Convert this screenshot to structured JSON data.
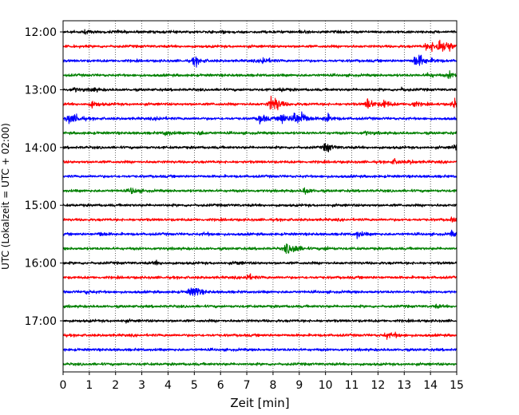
{
  "chart_data": {
    "type": "line",
    "xlabel": "Zeit  [min]",
    "ylabel": "UTC (Lokalzeit = UTC + 02:00)",
    "xlim": [
      0,
      15
    ],
    "x_ticks": [
      "0",
      "1",
      "2",
      "3",
      "4",
      "5",
      "6",
      "7",
      "8",
      "9",
      "10",
      "11",
      "12",
      "13",
      "14",
      "15"
    ],
    "y_ticks": [
      "12:00",
      "13:00",
      "14:00",
      "15:00",
      "16:00",
      "17:00"
    ],
    "grid": "vertical dotted",
    "trace_colors": [
      "#000000",
      "#ff0000",
      "#0000ff",
      "#008000"
    ],
    "trace_interval_min": 15,
    "traces": [
      {
        "start": "12:00",
        "events": [
          [
            0.8,
            0.3
          ],
          [
            2.0,
            0.2
          ],
          [
            6.0,
            0.2
          ],
          [
            9.0,
            0.2
          ]
        ]
      },
      {
        "start": "12:15",
        "events": [
          [
            14.0,
            0.9
          ],
          [
            14.3,
            1.8
          ],
          [
            14.6,
            1.5
          ],
          [
            13.8,
            0.5
          ]
        ]
      },
      {
        "start": "12:30",
        "events": [
          [
            5.0,
            1.2
          ],
          [
            7.6,
            1.0
          ],
          [
            13.4,
            1.3
          ],
          [
            13.6,
            1.0
          ],
          [
            14.1,
            0.3
          ]
        ]
      },
      {
        "start": "12:45",
        "events": [
          [
            13.9,
            0.5
          ],
          [
            14.7,
            0.8
          ]
        ]
      },
      {
        "start": "13:00",
        "events": [
          [
            0.4,
            0.5
          ],
          [
            1.1,
            0.5
          ],
          [
            8.3,
            0.4
          ],
          [
            12.9,
            0.3
          ]
        ]
      },
      {
        "start": "13:15",
        "events": [
          [
            1.1,
            0.8
          ],
          [
            7.9,
            1.7
          ],
          [
            8.1,
            1.2
          ],
          [
            11.6,
            1.5
          ],
          [
            12.2,
            1.1
          ],
          [
            13.3,
            0.8
          ],
          [
            14.9,
            1.3
          ]
        ]
      },
      {
        "start": "13:30",
        "events": [
          [
            0.2,
            1.3
          ],
          [
            0.5,
            0.7
          ],
          [
            7.5,
            1.3
          ],
          [
            8.3,
            1.6
          ],
          [
            8.8,
            1.9
          ],
          [
            9.1,
            1.4
          ],
          [
            10.0,
            1.2
          ],
          [
            3.6,
            0.4
          ]
        ]
      },
      {
        "start": "13:45",
        "events": [
          [
            3.9,
            0.6
          ],
          [
            5.2,
            0.4
          ],
          [
            11.5,
            0.4
          ]
        ]
      },
      {
        "start": "14:00",
        "events": [
          [
            10.0,
            1.4
          ],
          [
            14.9,
            0.8
          ]
        ]
      },
      {
        "start": "14:15",
        "events": [
          [
            12.6,
            0.6
          ],
          [
            13.2,
            0.3
          ]
        ]
      },
      {
        "start": "14:30",
        "events": []
      },
      {
        "start": "14:45",
        "events": [
          [
            2.6,
            0.8
          ],
          [
            9.2,
            0.8
          ]
        ]
      },
      {
        "start": "15:00",
        "events": []
      },
      {
        "start": "15:15",
        "events": [
          [
            14.8,
            0.4
          ]
        ]
      },
      {
        "start": "15:30",
        "events": [
          [
            1.4,
            0.5
          ],
          [
            5.4,
            0.3
          ],
          [
            11.2,
            0.8
          ],
          [
            14.8,
            0.6
          ]
        ]
      },
      {
        "start": "15:45",
        "events": [
          [
            8.5,
            1.3
          ],
          [
            8.8,
            0.9
          ],
          [
            10.0,
            0.3
          ]
        ]
      },
      {
        "start": "16:00",
        "events": [
          [
            3.5,
            0.4
          ],
          [
            6.6,
            0.3
          ]
        ]
      },
      {
        "start": "16:15",
        "events": [
          [
            7.0,
            0.9
          ]
        ]
      },
      {
        "start": "16:30",
        "events": [
          [
            5.0,
            1.3
          ],
          [
            4.8,
            0.7
          ],
          [
            0.9,
            0.4
          ]
        ]
      },
      {
        "start": "16:45",
        "events": [
          [
            14.2,
            0.3
          ]
        ]
      },
      {
        "start": "17:00",
        "events": [
          [
            2.3,
            0.2
          ]
        ]
      },
      {
        "start": "17:15",
        "events": [
          [
            12.3,
            0.7
          ],
          [
            12.6,
            0.4
          ]
        ]
      },
      {
        "start": "17:30",
        "events": []
      },
      {
        "start": "17:45",
        "events": []
      }
    ]
  }
}
